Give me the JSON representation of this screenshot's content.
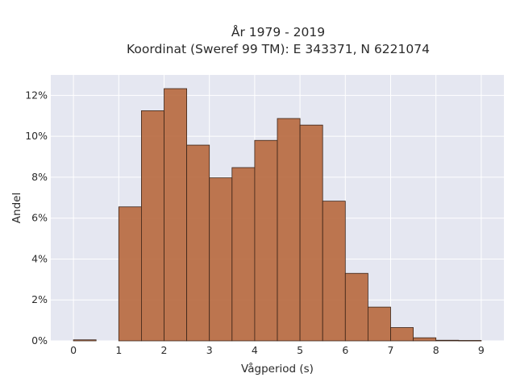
{
  "chart_data": {
    "type": "bar",
    "title_lines": [
      "År 1979 - 2019",
      "Koordinat (Sweref 99 TM): E 343371, N 6221074"
    ],
    "xlabel": "Vågperiod (s)",
    "ylabel": "Andel",
    "x_ticks": [
      0,
      1,
      2,
      3,
      4,
      5,
      6,
      7,
      8,
      9
    ],
    "x_tick_labels": [
      "0",
      "1",
      "2",
      "3",
      "4",
      "5",
      "6",
      "7",
      "8",
      "9"
    ],
    "y_ticks": [
      0,
      0.02,
      0.04,
      0.06,
      0.08,
      0.1,
      0.12
    ],
    "y_tick_labels": [
      "0%",
      "2%",
      "4%",
      "6%",
      "8%",
      "10%",
      "12%"
    ],
    "xlim": [
      -0.5,
      9.5
    ],
    "ylim": [
      0,
      0.13
    ],
    "bin_width": 0.5,
    "bins": [
      {
        "x0": 0.0,
        "x1": 0.5,
        "value": 0.0005
      },
      {
        "x0": 0.5,
        "x1": 1.0,
        "value": 0.0
      },
      {
        "x0": 1.0,
        "x1": 1.5,
        "value": 0.0655
      },
      {
        "x0": 1.5,
        "x1": 2.0,
        "value": 0.1125
      },
      {
        "x0": 2.0,
        "x1": 2.5,
        "value": 0.1233
      },
      {
        "x0": 2.5,
        "x1": 3.0,
        "value": 0.0957
      },
      {
        "x0": 3.0,
        "x1": 3.5,
        "value": 0.0797
      },
      {
        "x0": 3.5,
        "x1": 4.0,
        "value": 0.0847
      },
      {
        "x0": 4.0,
        "x1": 4.5,
        "value": 0.098
      },
      {
        "x0": 4.5,
        "x1": 5.0,
        "value": 0.1087
      },
      {
        "x0": 5.0,
        "x1": 5.5,
        "value": 0.1055
      },
      {
        "x0": 5.5,
        "x1": 6.0,
        "value": 0.0683
      },
      {
        "x0": 6.0,
        "x1": 6.5,
        "value": 0.033
      },
      {
        "x0": 6.5,
        "x1": 7.0,
        "value": 0.0165
      },
      {
        "x0": 7.0,
        "x1": 7.5,
        "value": 0.0065
      },
      {
        "x0": 7.5,
        "x1": 8.0,
        "value": 0.0015
      },
      {
        "x0": 8.0,
        "x1": 8.5,
        "value": 0.0003
      },
      {
        "x0": 8.5,
        "x1": 9.0,
        "value": 0.0002
      }
    ],
    "bar_color": "#b86b41",
    "bar_edge_color": "#3a2418",
    "plot_background": "#e5e7f1",
    "grid": true,
    "legend": "none"
  }
}
